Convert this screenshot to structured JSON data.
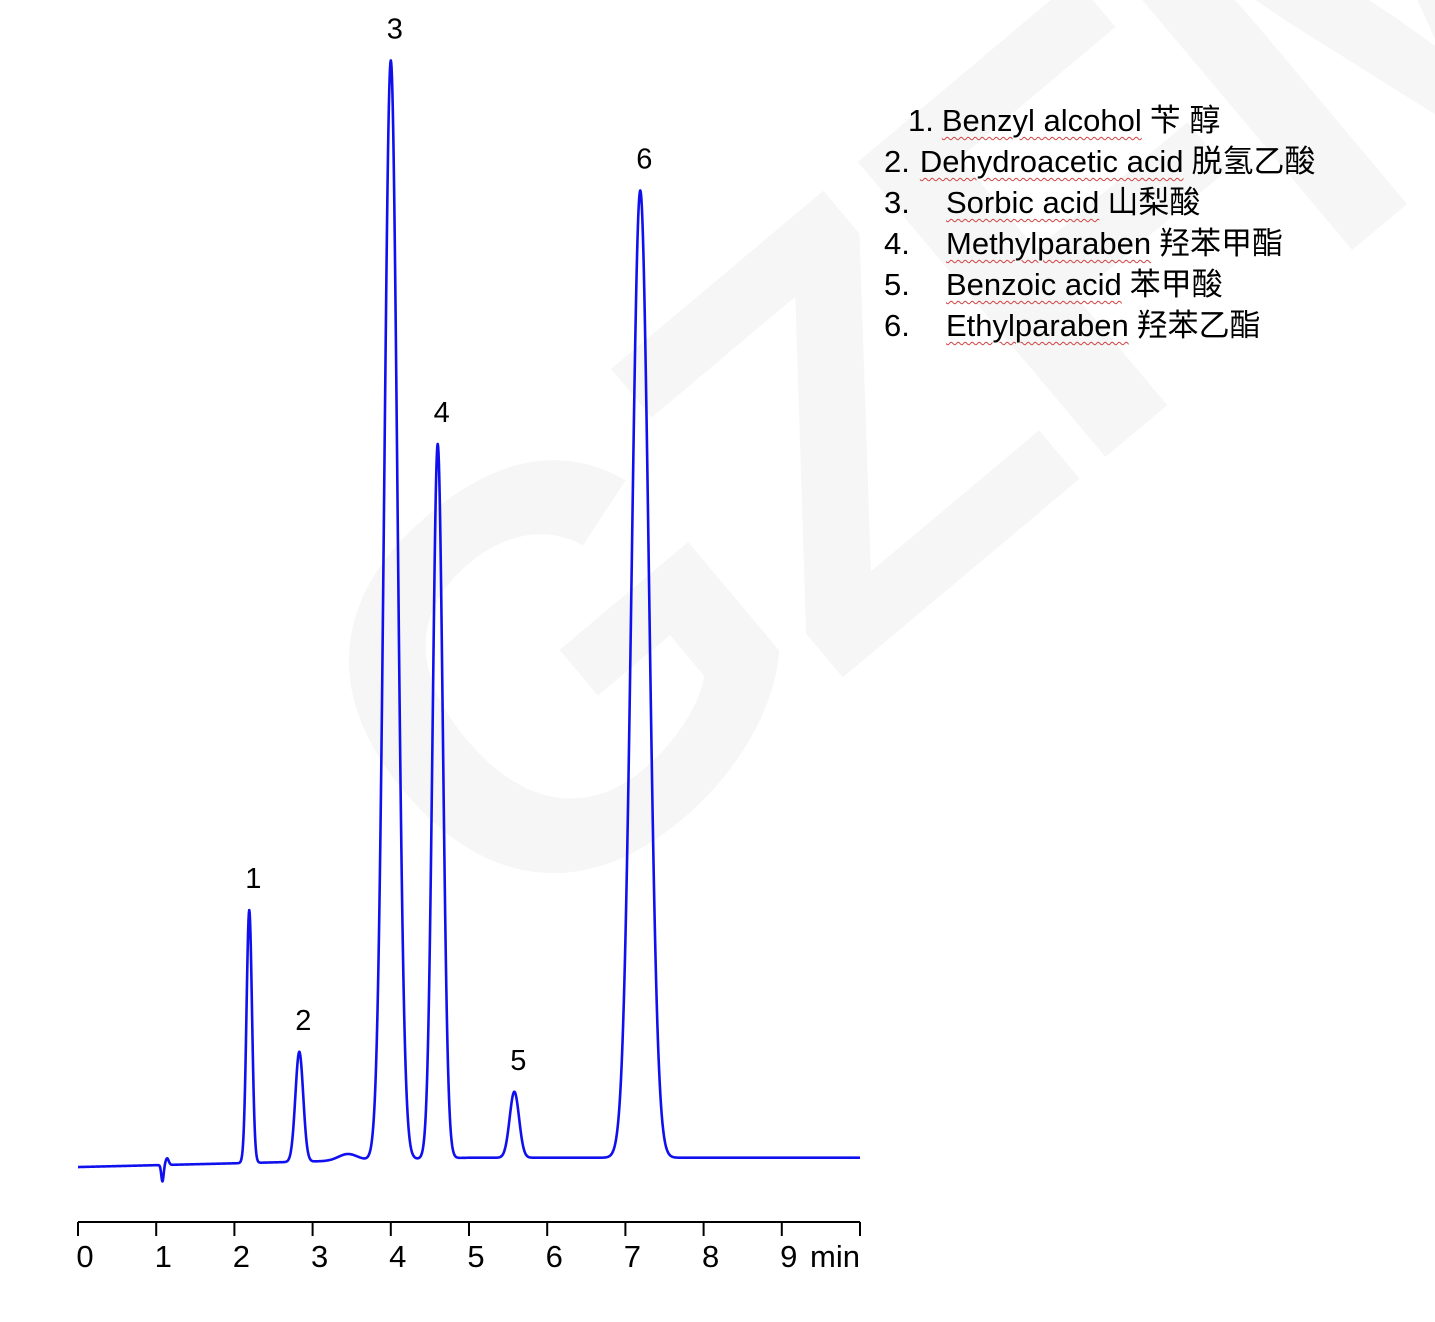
{
  "watermark": "GZFM",
  "chart_data": {
    "type": "line",
    "title": "",
    "xlabel": "min",
    "ylabel": "",
    "xlim": [
      0,
      10
    ],
    "x_ticks": [
      0,
      1,
      2,
      3,
      4,
      5,
      6,
      7,
      8,
      9
    ],
    "x_tick_labels": [
      "0",
      "1",
      "2",
      "3",
      "4",
      "5",
      "6",
      "7",
      "8",
      "9"
    ],
    "x_unit_label": "min",
    "y_axis_shown": false,
    "grid": false,
    "line_color": "#1010ee",
    "y_units": "relative intensity (%, largest peak = 100)",
    "peaks": [
      {
        "label": "1",
        "retention_time": 2.19,
        "height": 23,
        "width_sigma": 0.035
      },
      {
        "label": "2",
        "retention_time": 2.83,
        "height": 10,
        "width_sigma": 0.05
      },
      {
        "label": "3",
        "retention_time": 4.0,
        "height": 100,
        "width_sigma": 0.085
      },
      {
        "label": "4",
        "retention_time": 4.6,
        "height": 65,
        "width_sigma": 0.065
      },
      {
        "label": "5",
        "retention_time": 5.58,
        "height": 6,
        "width_sigma": 0.06
      },
      {
        "label": "6",
        "retention_time": 7.19,
        "height": 88,
        "width_sigma": 0.11
      }
    ],
    "legend_position": "top-right",
    "legend": [
      {
        "num": "1.",
        "name": "Benzyl alcohol",
        "name_zh": "苄 醇"
      },
      {
        "num": "2.",
        "name": "Dehydroacetic acid",
        "name_zh": "脱氢乙酸"
      },
      {
        "num": "3.",
        "name": "Sorbic acid",
        "name_zh": "山梨酸"
      },
      {
        "num": "4.",
        "name": "Methylparaben",
        "name_zh": "羟苯甲酯"
      },
      {
        "num": "5.",
        "name": "Benzoic acid",
        "name_zh": "苯甲酸"
      },
      {
        "num": "6.",
        "name": "Ethylparaben",
        "name_zh": "羟苯乙酯"
      }
    ]
  }
}
